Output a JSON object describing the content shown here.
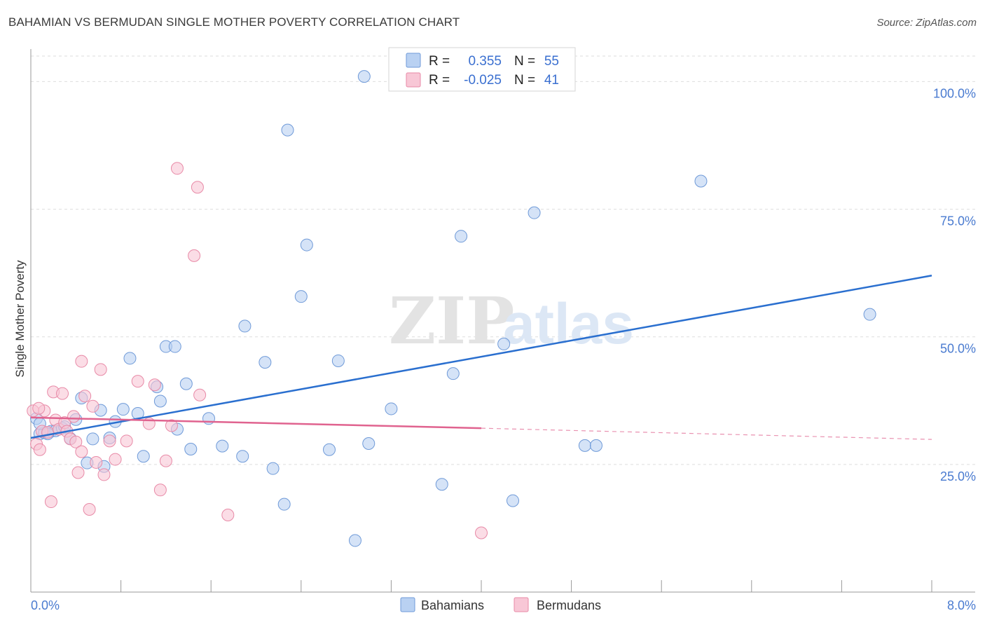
{
  "header": {
    "title": "BAHAMIAN VS BERMUDAN SINGLE MOTHER POVERTY CORRELATION CHART",
    "source": "Source: ZipAtlas.com"
  },
  "watermark": {
    "zip": "ZIP",
    "atlas": "atlas"
  },
  "colors": {
    "blue_fill": "#b9d1f2",
    "blue_stroke": "#6f9ad8",
    "blue_line": "#2a6fcf",
    "pink_fill": "#f8c7d6",
    "pink_stroke": "#e88aa7",
    "pink_line": "#e0638f",
    "tick_text": "#4a7bd0",
    "grid": "#dddddd"
  },
  "stats_legend": {
    "rows": [
      {
        "r_label": "R =",
        "r_value": "0.355",
        "n_label": "N =",
        "n_value": "55"
      },
      {
        "r_label": "R =",
        "r_value": "-0.025",
        "n_label": "N =",
        "n_value": "41"
      }
    ]
  },
  "chart_data": {
    "type": "scatter",
    "title": "BAHAMIAN VS BERMUDAN SINGLE MOTHER POVERTY CORRELATION CHART",
    "xlabel": "",
    "ylabel": "Single Mother Poverty",
    "xlim": [
      0,
      8
    ],
    "ylim": [
      0,
      105
    ],
    "x_tick_labels": [
      "0.0%",
      "8.0%"
    ],
    "y_ticks": [
      25,
      50,
      75,
      100
    ],
    "y_tick_labels": [
      "25.0%",
      "50.0%",
      "75.0%",
      "100.0%"
    ],
    "grid": true,
    "legend": [
      "Bahamians",
      "Bermudans"
    ],
    "series": [
      {
        "name": "Bahamians",
        "r": 0.355,
        "n": 55,
        "trend": {
          "x": [
            0,
            8
          ],
          "y": [
            30.2,
            62.0
          ]
        },
        "points": [
          [
            0.05,
            34.0
          ],
          [
            0.08,
            31.0
          ],
          [
            0.12,
            31.2
          ],
          [
            0.18,
            31.5
          ],
          [
            0.22,
            31.6
          ],
          [
            0.28,
            32.1
          ],
          [
            0.35,
            30.1
          ],
          [
            0.4,
            33.8
          ],
          [
            0.45,
            38.0
          ],
          [
            0.5,
            25.3
          ],
          [
            0.55,
            30.0
          ],
          [
            0.62,
            35.6
          ],
          [
            0.65,
            24.6
          ],
          [
            0.7,
            30.2
          ],
          [
            0.75,
            33.4
          ],
          [
            0.82,
            35.8
          ],
          [
            0.88,
            45.8
          ],
          [
            0.95,
            35.0
          ],
          [
            1.0,
            26.6
          ],
          [
            1.12,
            40.2
          ],
          [
            1.15,
            37.4
          ],
          [
            1.2,
            48.1
          ],
          [
            1.28,
            48.1
          ],
          [
            1.3,
            31.9
          ],
          [
            1.38,
            40.8
          ],
          [
            1.42,
            28.0
          ],
          [
            1.58,
            34.0
          ],
          [
            1.7,
            28.6
          ],
          [
            1.88,
            26.6
          ],
          [
            1.9,
            52.1
          ],
          [
            2.08,
            45.0
          ],
          [
            2.15,
            24.2
          ],
          [
            2.25,
            17.2
          ],
          [
            2.28,
            90.5
          ],
          [
            2.4,
            57.9
          ],
          [
            2.45,
            68.0
          ],
          [
            2.65,
            27.9
          ],
          [
            2.73,
            45.3
          ],
          [
            2.88,
            10.1
          ],
          [
            2.96,
            101.0
          ],
          [
            3.0,
            29.1
          ],
          [
            3.2,
            35.9
          ],
          [
            3.65,
            21.1
          ],
          [
            3.75,
            42.8
          ],
          [
            3.82,
            69.7
          ],
          [
            4.2,
            48.6
          ],
          [
            4.28,
            17.9
          ],
          [
            4.47,
            74.3
          ],
          [
            4.92,
            28.7
          ],
          [
            5.02,
            28.7
          ],
          [
            5.95,
            80.5
          ],
          [
            7.45,
            54.4
          ],
          [
            0.15,
            31.0
          ],
          [
            0.3,
            32.4
          ],
          [
            0.08,
            33.0
          ]
        ]
      },
      {
        "name": "Bermudans",
        "r": -0.025,
        "n": 41,
        "trend": {
          "x": [
            0,
            4.0
          ],
          "y": [
            34.2,
            32.1
          ],
          "dash_x": [
            4.0,
            8.0
          ],
          "dash_y": [
            32.1,
            29.9
          ]
        },
        "points": [
          [
            0.02,
            35.5
          ],
          [
            0.05,
            29.0
          ],
          [
            0.08,
            27.9
          ],
          [
            0.1,
            31.5
          ],
          [
            0.12,
            35.5
          ],
          [
            0.15,
            31.3
          ],
          [
            0.18,
            17.7
          ],
          [
            0.2,
            39.2
          ],
          [
            0.22,
            33.7
          ],
          [
            0.25,
            31.9
          ],
          [
            0.28,
            38.9
          ],
          [
            0.3,
            33.2
          ],
          [
            0.32,
            31.5
          ],
          [
            0.35,
            30.0
          ],
          [
            0.38,
            34.4
          ],
          [
            0.4,
            29.4
          ],
          [
            0.42,
            23.4
          ],
          [
            0.45,
            27.5
          ],
          [
            0.48,
            38.4
          ],
          [
            0.52,
            16.2
          ],
          [
            0.55,
            36.4
          ],
          [
            0.58,
            25.4
          ],
          [
            0.62,
            43.6
          ],
          [
            0.65,
            23.0
          ],
          [
            0.7,
            29.6
          ],
          [
            0.75,
            26.0
          ],
          [
            0.85,
            29.6
          ],
          [
            0.95,
            41.3
          ],
          [
            1.05,
            33.0
          ],
          [
            1.1,
            40.6
          ],
          [
            1.15,
            20.0
          ],
          [
            1.2,
            25.7
          ],
          [
            1.25,
            32.6
          ],
          [
            1.3,
            83.0
          ],
          [
            1.45,
            65.9
          ],
          [
            1.48,
            79.3
          ],
          [
            1.5,
            38.6
          ],
          [
            1.75,
            15.1
          ],
          [
            4.0,
            11.6
          ],
          [
            0.07,
            36.0
          ],
          [
            0.45,
            45.2
          ]
        ]
      }
    ]
  },
  "bottom_legend": {
    "items": [
      "Bahamians",
      "Bermudans"
    ]
  }
}
